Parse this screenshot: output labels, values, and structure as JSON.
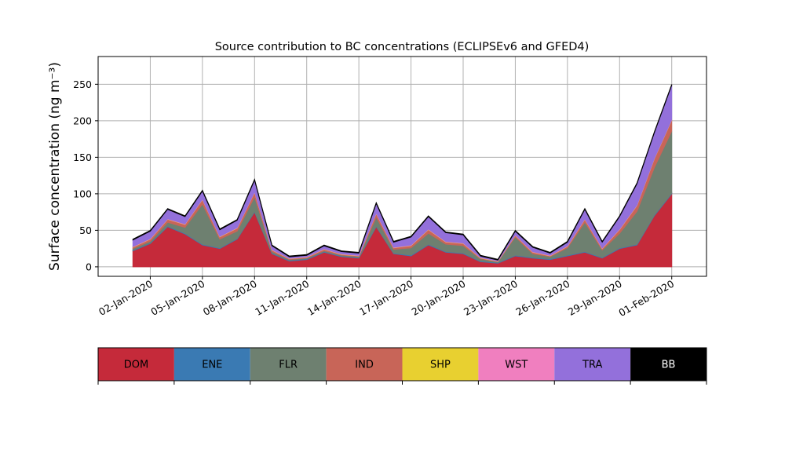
{
  "chart_data": {
    "type": "stacked_area",
    "title": "Source contribution to BC concentrations (ECLIPSEv6 and GFED4)",
    "y_label": "Surface concentration (ng m⁻³)",
    "x": [
      "2020-01-01",
      "2020-01-02",
      "2020-01-03",
      "2020-01-04",
      "2020-01-05",
      "2020-01-06",
      "2020-01-07",
      "2020-01-08",
      "2020-01-09",
      "2020-01-10",
      "2020-01-11",
      "2020-01-12",
      "2020-01-13",
      "2020-01-14",
      "2020-01-15",
      "2020-01-16",
      "2020-01-17",
      "2020-01-18",
      "2020-01-19",
      "2020-01-20",
      "2020-01-21",
      "2020-01-22",
      "2020-01-23",
      "2020-01-24",
      "2020-01-25",
      "2020-01-26",
      "2020-01-27",
      "2020-01-28",
      "2020-01-29",
      "2020-01-30",
      "2020-01-31",
      "2020-02-01"
    ],
    "series": [
      {
        "name": "DOM",
        "color": "#c52a3a",
        "values": [
          22,
          32,
          55,
          45,
          30,
          25,
          38,
          75,
          18,
          8,
          10,
          20,
          14,
          12,
          55,
          18,
          15,
          30,
          20,
          18,
          7,
          5,
          15,
          12,
          10,
          15,
          20,
          12,
          25,
          30,
          70,
          100
        ]
      },
      {
        "name": "ENE",
        "color": "#3a7ab3",
        "values": [
          1,
          1,
          1,
          1,
          1,
          1,
          1,
          1,
          1,
          1,
          1,
          1,
          1,
          1,
          1,
          1,
          1,
          1,
          1,
          1,
          1,
          1,
          1,
          1,
          1,
          1,
          1,
          1,
          1,
          1,
          1,
          1
        ]
      },
      {
        "name": "FLR",
        "color": "#6e8070",
        "values": [
          2,
          2,
          5,
          8,
          55,
          12,
          10,
          20,
          2,
          1,
          1,
          1,
          1,
          1,
          12,
          5,
          10,
          15,
          10,
          10,
          3,
          1,
          25,
          5,
          3,
          10,
          40,
          10,
          20,
          45,
          65,
          85
        ]
      },
      {
        "name": "IND",
        "color": "#c86558",
        "values": [
          2,
          3,
          4,
          4,
          6,
          3,
          4,
          6,
          2,
          1,
          1,
          2,
          1,
          1,
          5,
          2,
          3,
          5,
          3,
          3,
          1,
          0.5,
          2,
          2,
          1,
          2,
          4,
          2,
          5,
          8,
          12,
          15
        ]
      },
      {
        "name": "SHP",
        "color": "#e8d030",
        "values": [
          0.3,
          0.3,
          0.3,
          0.3,
          0.3,
          0.3,
          0.3,
          0.3,
          0.3,
          0.3,
          0.3,
          0.3,
          0.3,
          0.3,
          0.3,
          0.3,
          0.3,
          0.3,
          0.3,
          0.3,
          0.3,
          0.3,
          0.3,
          0.3,
          0.3,
          0.3,
          0.3,
          0.3,
          0.3,
          0.3,
          0.3,
          0.3
        ]
      },
      {
        "name": "WST",
        "color": "#f07fbf",
        "values": [
          0.5,
          0.5,
          0.5,
          0.5,
          0.5,
          0.5,
          0.5,
          0.5,
          0.5,
          0.5,
          0.5,
          0.5,
          0.5,
          0.5,
          0.5,
          0.5,
          0.5,
          0.5,
          0.5,
          0.5,
          0.5,
          0.5,
          0.5,
          0.5,
          0.5,
          0.5,
          0.5,
          0.5,
          0.5,
          0.5,
          0.5,
          0.5
        ]
      },
      {
        "name": "TRA",
        "color": "#9370db",
        "values": [
          9,
          10,
          13,
          10,
          11,
          9,
          10,
          16,
          5,
          2,
          2,
          4,
          3,
          3,
          13,
          7,
          11,
          17,
          12,
          11,
          2,
          1,
          5,
          6,
          3,
          5,
          13,
          8,
          17,
          29,
          35,
          47
        ]
      },
      {
        "name": "BB",
        "color": "#000000",
        "values": [
          1,
          1,
          1,
          1,
          1,
          1,
          1,
          1,
          1,
          1,
          1,
          1,
          1,
          1,
          1,
          1,
          1,
          1,
          1,
          1,
          1,
          1,
          1,
          1,
          1,
          1,
          1,
          1,
          1,
          1,
          1,
          1
        ]
      }
    ],
    "xlim": [
      "2019-12-30",
      "2020-02-03"
    ],
    "xticks": [
      {
        "value": "2020-01-02",
        "label": "02-Jan-2020"
      },
      {
        "value": "2020-01-05",
        "label": "05-Jan-2020"
      },
      {
        "value": "2020-01-08",
        "label": "08-Jan-2020"
      },
      {
        "value": "2020-01-11",
        "label": "11-Jan-2020"
      },
      {
        "value": "2020-01-14",
        "label": "14-Jan-2020"
      },
      {
        "value": "2020-01-17",
        "label": "17-Jan-2020"
      },
      {
        "value": "2020-01-20",
        "label": "20-Jan-2020"
      },
      {
        "value": "2020-01-23",
        "label": "23-Jan-2020"
      },
      {
        "value": "2020-01-26",
        "label": "26-Jan-2020"
      },
      {
        "value": "2020-01-29",
        "label": "29-Jan-2020"
      },
      {
        "value": "2020-02-01",
        "label": "01-Feb-2020"
      }
    ],
    "ylim": [
      -13,
      288
    ],
    "yticks": [
      0,
      50,
      100,
      150,
      200,
      250
    ],
    "grid": true
  }
}
